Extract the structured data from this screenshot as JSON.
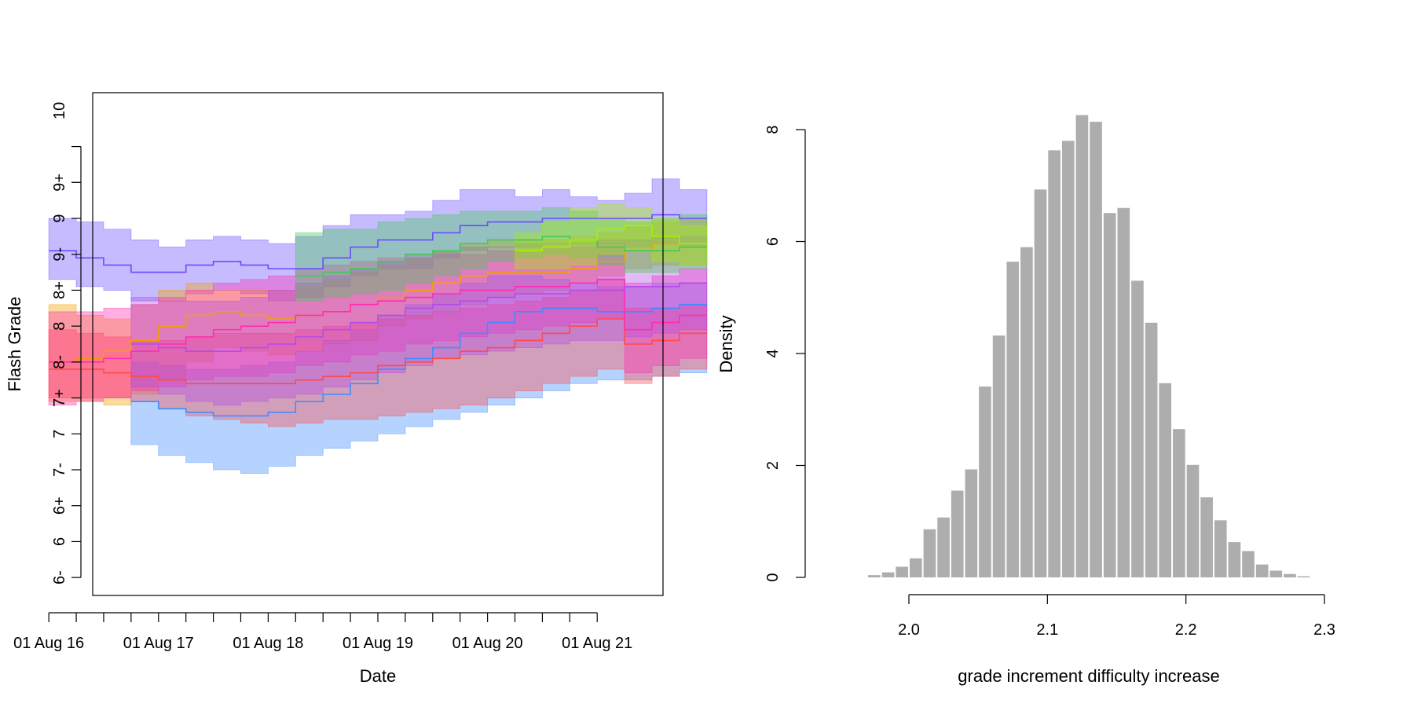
{
  "chart_data": [
    {
      "type": "area",
      "xlabel": "Date",
      "ylabel": "Flash Grade",
      "x_ticks": [
        "01 Aug 16",
        "01 Aug 17",
        "01 Aug 18",
        "01 Aug 19",
        "01 Aug 20",
        "01 Aug 21"
      ],
      "y_ticks": [
        "6-",
        "6",
        "6+",
        "7-",
        "7",
        "7+",
        "8-",
        "8",
        "8+",
        "9-",
        "9",
        "9+",
        "10"
      ],
      "xlim": [
        2016.4,
        2021.6
      ],
      "ylim": [
        -0.5,
        13.5
      ],
      "step": 0.25,
      "series": [
        {
          "color": "#6a4cff",
          "lower": [
            8.3,
            8.1,
            8.0,
            7.7,
            7.7,
            7.9,
            8.0,
            7.9,
            7.7,
            7.8,
            8.1,
            8.4,
            8.6,
            8.6,
            8.9,
            9.1,
            9.2,
            9.2,
            9.3,
            9.3,
            9.3,
            9.2,
            9.3,
            9.2
          ],
          "mid": [
            9.1,
            8.9,
            8.7,
            8.5,
            8.5,
            8.7,
            8.8,
            8.7,
            8.6,
            8.6,
            8.9,
            9.2,
            9.4,
            9.4,
            9.6,
            9.8,
            9.9,
            9.9,
            10.0,
            10.0,
            10.0,
            10.0,
            10.1,
            10.0
          ],
          "upper": [
            10.0,
            9.9,
            9.7,
            9.4,
            9.2,
            9.4,
            9.5,
            9.4,
            9.3,
            9.5,
            9.8,
            10.1,
            10.1,
            10.2,
            10.5,
            10.8,
            10.8,
            10.6,
            10.8,
            10.6,
            10.5,
            10.7,
            11.1,
            10.8
          ]
        },
        {
          "color": "#f0a000",
          "lower": [
            4.9,
            4.9,
            4.8,
            5.1,
            5.5,
            6.0,
            6.4,
            6.3,
            6.2,
            6.3,
            6.5,
            6.6,
            7.0,
            7.2,
            7.4,
            7.6,
            7.8,
            7.9,
            8.0,
            8.2,
            8.4,
            8.6,
            8.7,
            8.7
          ],
          "mid": [
            6.0,
            6.1,
            6.3,
            6.6,
            7.0,
            7.3,
            7.4,
            7.3,
            7.2,
            7.3,
            7.4,
            7.6,
            7.8,
            8.0,
            8.2,
            8.4,
            8.5,
            8.5,
            8.5,
            8.6,
            8.8,
            9.1,
            9.3,
            9.3
          ],
          "upper": [
            7.6,
            7.3,
            7.2,
            7.6,
            8.0,
            8.2,
            8.0,
            8.0,
            8.0,
            8.1,
            8.3,
            8.5,
            8.7,
            8.9,
            9.1,
            9.3,
            9.4,
            9.4,
            9.4,
            9.5,
            9.6,
            9.8,
            9.9,
            10.0
          ]
        },
        {
          "color": "#3f8cff",
          "lower": [
            null,
            null,
            null,
            3.7,
            3.4,
            3.2,
            3.0,
            2.9,
            3.1,
            3.4,
            3.6,
            3.8,
            4.0,
            4.2,
            4.4,
            4.6,
            4.8,
            5.0,
            5.2,
            5.4,
            5.5,
            5.5,
            5.6,
            5.7
          ],
          "mid": [
            null,
            null,
            null,
            4.9,
            4.7,
            4.6,
            4.5,
            4.5,
            4.6,
            4.9,
            5.1,
            5.4,
            5.8,
            6.1,
            6.4,
            6.8,
            7.1,
            7.4,
            7.5,
            7.5,
            7.4,
            7.4,
            7.5,
            7.6
          ],
          "upper": [
            null,
            null,
            null,
            6.0,
            5.9,
            5.8,
            5.8,
            5.9,
            6.0,
            6.3,
            6.6,
            6.9,
            7.3,
            7.6,
            7.9,
            8.2,
            8.4,
            8.4,
            8.3,
            8.2,
            8.1,
            8.1,
            8.2,
            8.2
          ]
        },
        {
          "color": "#ff4a4a",
          "lower": [
            5.0,
            5.0,
            5.0,
            4.9,
            4.7,
            4.5,
            4.4,
            4.3,
            4.2,
            4.3,
            4.4,
            4.4,
            4.5,
            4.6,
            4.7,
            4.8,
            5.0,
            5.2,
            5.4,
            5.6,
            5.8,
            5.4,
            5.6,
            5.8
          ],
          "mid": [
            5.8,
            5.8,
            5.7,
            5.6,
            5.5,
            5.4,
            5.4,
            5.4,
            5.4,
            5.5,
            5.6,
            5.7,
            5.9,
            6.0,
            6.1,
            6.3,
            6.4,
            6.6,
            6.8,
            7.0,
            7.2,
            6.5,
            6.6,
            6.8
          ],
          "upper": [
            6.9,
            6.8,
            6.7,
            6.6,
            6.6,
            6.7,
            6.8,
            6.8,
            6.8,
            6.9,
            7.0,
            7.1,
            7.2,
            7.3,
            7.4,
            7.5,
            7.6,
            7.7,
            7.8,
            8.0,
            8.3,
            7.5,
            7.5,
            7.6
          ]
        },
        {
          "color": "#ff2eb0",
          "lower": [
            4.8,
            4.9,
            5.0,
            5.2,
            5.3,
            5.5,
            5.6,
            5.6,
            5.7,
            5.9,
            6.0,
            6.2,
            6.3,
            6.5,
            6.6,
            6.7,
            6.8,
            6.9,
            7.0,
            7.1,
            7.2,
            5.7,
            5.9,
            6.1
          ],
          "mid": [
            6.0,
            6.0,
            6.1,
            6.3,
            6.5,
            6.7,
            6.9,
            7.0,
            7.1,
            7.3,
            7.4,
            7.6,
            7.7,
            7.8,
            7.9,
            8.0,
            8.0,
            8.1,
            8.1,
            8.2,
            8.3,
            6.9,
            7.1,
            7.3
          ],
          "upper": [
            7.4,
            7.4,
            7.5,
            7.6,
            7.8,
            8.0,
            8.2,
            8.3,
            8.4,
            8.6,
            8.7,
            8.8,
            8.9,
            8.9,
            9.0,
            9.0,
            9.1,
            9.1,
            9.2,
            9.2,
            9.3,
            8.2,
            8.4,
            8.6
          ]
        },
        {
          "color": "#b44ce8",
          "lower": [
            null,
            null,
            null,
            5.3,
            5.1,
            4.9,
            4.8,
            4.9,
            5.0,
            5.1,
            5.3,
            5.5,
            5.7,
            5.9,
            6.1,
            6.2,
            6.3,
            6.4,
            6.5,
            6.6,
            6.6,
            6.7,
            6.8,
            6.9
          ],
          "mid": [
            null,
            null,
            null,
            6.5,
            6.4,
            6.3,
            6.3,
            6.4,
            6.5,
            6.7,
            6.9,
            7.1,
            7.3,
            7.5,
            7.6,
            7.7,
            7.8,
            7.9,
            7.9,
            8.0,
            8.0,
            8.1,
            8.1,
            8.2
          ],
          "upper": [
            null,
            null,
            null,
            7.8,
            7.7,
            7.7,
            7.7,
            7.8,
            8.0,
            8.2,
            8.4,
            8.6,
            8.8,
            9.0,
            9.1,
            9.2,
            9.2,
            9.3,
            9.3,
            9.3,
            9.4,
            9.4,
            9.5,
            9.5
          ]
        },
        {
          "color": "#44c858",
          "lower": [
            null,
            null,
            null,
            null,
            null,
            null,
            null,
            null,
            null,
            7.7,
            7.8,
            7.9,
            8.0,
            8.2,
            8.4,
            8.6,
            8.8,
            8.9,
            9.0,
            8.9,
            8.7,
            8.5,
            8.5,
            8.6
          ],
          "mid": [
            null,
            null,
            null,
            null,
            null,
            null,
            null,
            null,
            null,
            8.4,
            8.5,
            8.6,
            8.8,
            9.0,
            9.1,
            9.3,
            9.4,
            9.4,
            9.5,
            9.4,
            9.2,
            9.1,
            9.1,
            9.2
          ],
          "upper": [
            null,
            null,
            null,
            null,
            null,
            null,
            null,
            null,
            null,
            9.6,
            9.7,
            9.7,
            9.9,
            10.0,
            10.1,
            10.2,
            10.2,
            10.2,
            10.3,
            10.2,
            10.0,
            9.9,
            10.0,
            10.1
          ]
        },
        {
          "color": "#a6f000",
          "lower": [
            null,
            null,
            null,
            null,
            null,
            null,
            null,
            null,
            null,
            null,
            null,
            null,
            null,
            null,
            null,
            null,
            null,
            8.6,
            8.6,
            8.7,
            9.0,
            9.1,
            8.8,
            8.7
          ],
          "mid": [
            null,
            null,
            null,
            null,
            null,
            null,
            null,
            null,
            null,
            null,
            null,
            null,
            null,
            null,
            null,
            null,
            null,
            9.1,
            9.2,
            9.4,
            9.7,
            9.8,
            9.5,
            9.3
          ],
          "upper": [
            null,
            null,
            null,
            null,
            null,
            null,
            null,
            null,
            null,
            null,
            null,
            null,
            null,
            null,
            null,
            null,
            null,
            9.6,
            9.9,
            10.3,
            10.4,
            10.3,
            10.0,
            9.8
          ]
        }
      ]
    },
    {
      "type": "bar",
      "xlabel": "grade increment difficulty increase",
      "ylabel": "Density",
      "x_ticks": [
        "2.0",
        "2.1",
        "2.2",
        "2.3"
      ],
      "y_ticks": [
        "0",
        "2",
        "4",
        "6",
        "8"
      ],
      "xlim": [
        2.0,
        2.3
      ],
      "ylim": [
        0,
        8
      ],
      "bin_start": 1.97,
      "bin_width": 0.01,
      "values": [
        0.04,
        0.09,
        0.19,
        0.34,
        0.86,
        1.07,
        1.55,
        1.93,
        3.41,
        4.32,
        5.64,
        5.9,
        6.93,
        7.63,
        7.8,
        8.26,
        8.14,
        6.51,
        6.6,
        5.3,
        4.55,
        3.47,
        2.65,
        2.01,
        1.43,
        1.02,
        0.63,
        0.47,
        0.23,
        0.12,
        0.06,
        0.02
      ],
      "bar_color": "#adadad"
    }
  ]
}
